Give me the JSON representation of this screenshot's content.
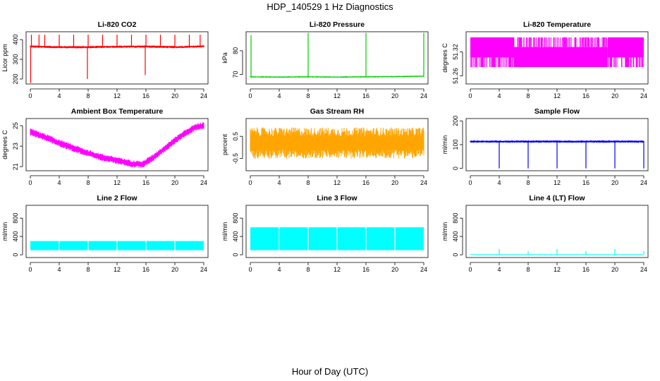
{
  "figure": {
    "title": "HDP_140529  1 Hz Diagnostics",
    "xlabel": "Hour of Day (UTC)"
  },
  "chart_data": [
    {
      "type": "line",
      "title": "Li-820 CO2",
      "ylabel": "Licor ppm",
      "color": "#ff0000",
      "xlim": [
        0,
        24
      ],
      "ylim": [
        175,
        440
      ],
      "xticks": [
        "0",
        "4",
        "8",
        "12",
        "16",
        "20",
        "24"
      ],
      "yticks": [
        {
          "value": 200,
          "label": "200"
        },
        {
          "value": 300,
          "label": "300"
        },
        {
          "value": 400,
          "label": "400"
        }
      ],
      "series": [
        {
          "kind": "band",
          "base": [
            [
              0,
              365
            ],
            [
              4,
              362
            ],
            [
              8,
              362
            ],
            [
              12,
              364
            ],
            [
              16,
              365
            ],
            [
              20,
              362
            ],
            [
              24,
              366
            ]
          ],
          "noise": 6
        },
        {
          "kind": "spikes",
          "points": [
            [
              0.05,
              180
            ],
            [
              0.15,
              425
            ],
            [
              1.2,
              425
            ],
            [
              2.0,
              425
            ],
            [
              4.0,
              425
            ],
            [
              6.0,
              425
            ],
            [
              7.9,
              200
            ],
            [
              8.0,
              425
            ],
            [
              10.0,
              425
            ],
            [
              12.0,
              425
            ],
            [
              14.0,
              425
            ],
            [
              15.9,
              220
            ],
            [
              16.0,
              425
            ],
            [
              18.0,
              425
            ],
            [
              20.0,
              425
            ],
            [
              22.0,
              425
            ],
            [
              23.5,
              425
            ]
          ]
        }
      ]
    },
    {
      "type": "line",
      "title": "Li-820 Pressure",
      "ylabel": "kPa",
      "color": "#00cd00",
      "xlim": [
        0,
        24
      ],
      "ylim": [
        66,
        88
      ],
      "xticks": [
        "0",
        "4",
        "8",
        "12",
        "16",
        "20",
        "24"
      ],
      "yticks": [
        {
          "value": 70,
          "label": "70"
        },
        {
          "value": 80,
          "label": "80"
        }
      ],
      "series": [
        {
          "kind": "band",
          "base": [
            [
              0,
              69.0
            ],
            [
              4,
              68.9
            ],
            [
              8,
              69.0
            ],
            [
              12,
              68.9
            ],
            [
              16,
              69.0
            ],
            [
              20,
              69.1
            ],
            [
              24,
              69.3
            ]
          ],
          "noise": 0.3
        },
        {
          "kind": "spikes",
          "points": [
            [
              0.1,
              86.5
            ],
            [
              8.0,
              87.5
            ],
            [
              16.0,
              87.5
            ],
            [
              24.0,
              87.5
            ]
          ]
        }
      ]
    },
    {
      "type": "line",
      "title": "Li-820 Temperature",
      "ylabel": "degrees C",
      "color": "#ff00ff",
      "xlim": [
        0,
        24
      ],
      "ylim": [
        51.24,
        51.37
      ],
      "xticks": [
        "0",
        "4",
        "8",
        "12",
        "16",
        "20",
        "24"
      ],
      "yticks": [
        {
          "value": 51.26,
          "label": "51.26"
        },
        {
          "value": 51.32,
          "label": "51.32"
        }
      ],
      "series": [
        {
          "kind": "levels",
          "levels": [
            51.356,
            51.332,
            51.306,
            51.282
          ],
          "segments": [
            [
              0,
              6,
              51.356,
              51.306
            ],
            [
              6,
              19,
              51.332,
              51.282
            ],
            [
              19,
              24,
              51.356,
              51.306
            ]
          ]
        },
        {
          "kind": "spikes",
          "points": [
            [
              13.2,
              51.245
            ]
          ]
        }
      ]
    },
    {
      "type": "line",
      "title": "Ambient Box Temperature",
      "ylabel": "degrees C",
      "color": "#ff00ff",
      "xlim": [
        0,
        24
      ],
      "ylim": [
        20.6,
        25.7
      ],
      "xticks": [
        "0",
        "4",
        "8",
        "12",
        "16",
        "20",
        "24"
      ],
      "yticks": [
        {
          "value": 21,
          "label": "21"
        },
        {
          "value": 23,
          "label": "23"
        },
        {
          "value": 25,
          "label": "25"
        }
      ],
      "series": [
        {
          "kind": "band",
          "base": [
            [
              0,
              24.4
            ],
            [
              2,
              23.9
            ],
            [
              4,
              23.3
            ],
            [
              6,
              22.8
            ],
            [
              8,
              22.3
            ],
            [
              10,
              21.9
            ],
            [
              12,
              21.6
            ],
            [
              14,
              21.3
            ],
            [
              15.5,
              21.2
            ],
            [
              17,
              21.9
            ],
            [
              19,
              23.0
            ],
            [
              21,
              24.1
            ],
            [
              23,
              24.9
            ],
            [
              24,
              25.0
            ]
          ],
          "noise": 0.35
        }
      ]
    },
    {
      "type": "line",
      "title": "Gas Stream RH",
      "ylabel": "percent",
      "color": "#ffa500",
      "xlim": [
        0,
        24
      ],
      "ylim": [
        -1.05,
        1.3
      ],
      "xticks": [
        "0",
        "4",
        "8",
        "12",
        "16",
        "20",
        "24"
      ],
      "yticks": [
        {
          "value": -0.5,
          "label": "-0.5"
        },
        {
          "value": 0.5,
          "label": "0.5"
        }
      ],
      "series": [
        {
          "kind": "band",
          "base": [
            [
              0,
              0.2
            ],
            [
              4,
              0.2
            ],
            [
              8,
              0.2
            ],
            [
              12,
              0.2
            ],
            [
              16,
              0.2
            ],
            [
              20,
              0.2
            ],
            [
              24,
              0.2
            ]
          ],
          "noise": 0.7
        }
      ]
    },
    {
      "type": "line",
      "title": "Sample Flow",
      "ylabel": "ml/min",
      "color": "#0000ff",
      "xlim": [
        0,
        24
      ],
      "ylim": [
        -10,
        210
      ],
      "xticks": [
        "0",
        "4",
        "8",
        "12",
        "16",
        "20",
        "24"
      ],
      "yticks": [
        {
          "value": 0,
          "label": "0"
        },
        {
          "value": 100,
          "label": "100"
        },
        {
          "value": 200,
          "label": "200"
        }
      ],
      "series": [
        {
          "kind": "band",
          "base": [
            [
              0,
              113
            ],
            [
              4,
              113
            ],
            [
              8,
              113
            ],
            [
              12,
              113
            ],
            [
              16,
              113
            ],
            [
              20,
              113
            ],
            [
              24,
              113
            ]
          ],
          "noise": 5
        },
        {
          "kind": "dips",
          "points": [
            [
              4.0,
              0
            ],
            [
              8.0,
              0
            ],
            [
              12.0,
              0
            ],
            [
              16.0,
              0
            ],
            [
              20.0,
              0
            ],
            [
              24.0,
              0
            ]
          ]
        }
      ]
    },
    {
      "type": "line",
      "title": "Line 2 Flow",
      "ylabel": "ml/min",
      "color": "#00ffff",
      "xlim": [
        0,
        24
      ],
      "ylim": [
        -60,
        1080
      ],
      "xticks": [
        "0",
        "4",
        "8",
        "12",
        "16",
        "20",
        "24"
      ],
      "yticks": [
        {
          "value": 0,
          "label": "0"
        },
        {
          "value": 400,
          "label": "400"
        },
        {
          "value": 800,
          "label": "800"
        }
      ],
      "series": [
        {
          "kind": "block",
          "low": 100,
          "high": 300,
          "xstart": 0,
          "xend": 24
        }
      ]
    },
    {
      "type": "line",
      "title": "Line 3 Flow",
      "ylabel": "ml/min",
      "color": "#00ffff",
      "xlim": [
        0,
        24
      ],
      "ylim": [
        -60,
        1080
      ],
      "xticks": [
        "0",
        "4",
        "8",
        "12",
        "16",
        "20",
        "24"
      ],
      "yticks": [
        {
          "value": 0,
          "label": "0"
        },
        {
          "value": 400,
          "label": "400"
        },
        {
          "value": 800,
          "label": "800"
        }
      ],
      "series": [
        {
          "kind": "block",
          "low": 100,
          "high": 600,
          "xstart": 0,
          "xend": 24
        }
      ]
    },
    {
      "type": "line",
      "title": "Line 4 (LT) Flow",
      "ylabel": "ml/min",
      "color": "#00ffff",
      "xlim": [
        0,
        24
      ],
      "ylim": [
        -60,
        1080
      ],
      "xticks": [
        "0",
        "4",
        "8",
        "12",
        "16",
        "20",
        "24"
      ],
      "yticks": [
        {
          "value": 0,
          "label": "0"
        },
        {
          "value": 400,
          "label": "400"
        },
        {
          "value": 800,
          "label": "800"
        }
      ],
      "series": [
        {
          "kind": "band",
          "base": [
            [
              0,
              5
            ],
            [
              24,
              5
            ]
          ],
          "noise": 0
        },
        {
          "kind": "spikes",
          "points": [
            [
              4.0,
              130
            ],
            [
              8.0,
              80
            ],
            [
              12.0,
              130
            ],
            [
              16.0,
              80
            ],
            [
              20.0,
              130
            ],
            [
              24.0,
              80
            ]
          ]
        }
      ]
    }
  ]
}
